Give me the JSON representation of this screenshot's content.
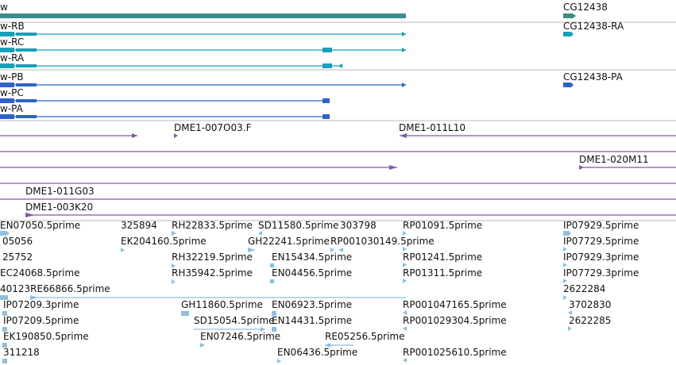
{
  "genes": {
    "gene_left_label": "w",
    "gene_right_label": "CG12438"
  },
  "transcripts": {
    "rb": "w-RB",
    "rc": "w-RC",
    "ra": "w-RA",
    "right_ra": "CG12438-RA"
  },
  "proteins": {
    "pb": "w-PB",
    "pc": "w-PC",
    "pa": "w-PA",
    "right_pa": "CG12438-PA"
  },
  "bac_clones": {
    "c1": "DME1-007O03.F",
    "c2": "DME1-011L10",
    "c3": "DME1-020M11",
    "c4": "DME1-011G03",
    "c5": "DME1-003K20"
  },
  "est_rows": [
    [
      "EN07050.5prime",
      "325894",
      "RH22833.5prime",
      "SD11580.5prime",
      "303798",
      "RP01091.5prime",
      "IP07929.5prime"
    ],
    [
      "05056",
      "EK204160.5prime",
      "GH22241.5prime",
      "RP001030149.5prime",
      "IP07729.5prime"
    ],
    [
      "25752",
      "RH32219.5prime",
      "EN15434.5prime",
      "RP01241.5prime",
      "IP07929.3prime"
    ],
    [
      "EC24068.5prime",
      "RH35942.5prime",
      "EN04456.5prime",
      "RP01311.5prime",
      "IP07729.3prime"
    ],
    [
      "40123RE66866.5prime",
      "2622284"
    ],
    [
      "IP07209.3prime",
      "GH11860.5prime",
      "EN06923.5prime",
      "RP001047165.5prime",
      "3702830"
    ],
    [
      "IP07209.5prime",
      "SD15054.5prime",
      "EN14431.5prime",
      "RP001029304.5prime",
      "2622285"
    ],
    [
      "EK190850.5prime",
      "EN07246.5prime",
      "RE05256.5prime"
    ],
    [
      "311218",
      "EN06436.5prime",
      "RP001025610.5prime"
    ]
  ],
  "colors": {
    "gene": "#3b8c8c",
    "transcript": "#18a0b8",
    "protein": "#2e64c8",
    "clone": "#7e5aa8",
    "est": "#8fbede",
    "separator": "#b8b8b8"
  }
}
